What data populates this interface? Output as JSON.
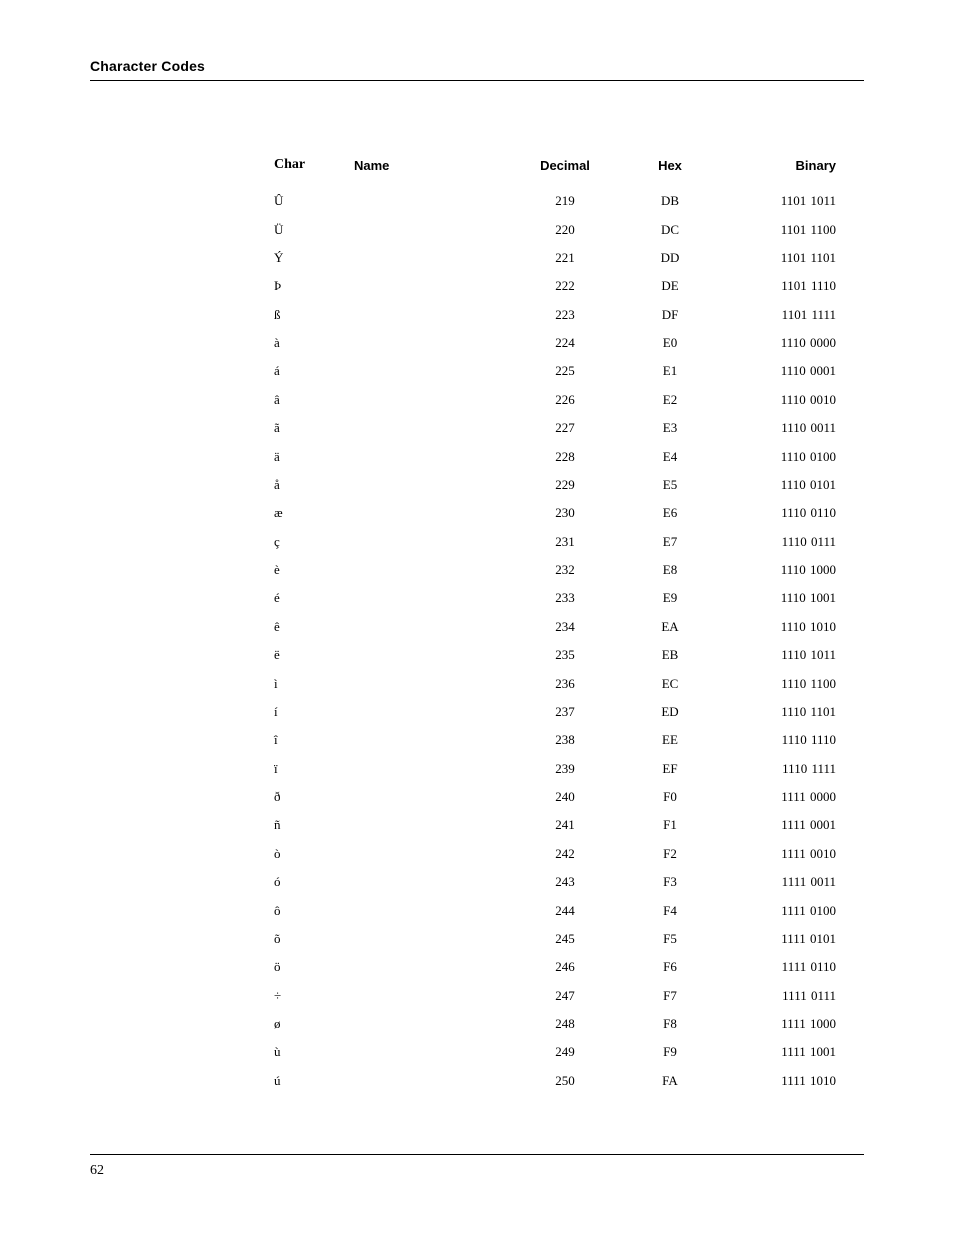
{
  "header": {
    "title": "Character Codes"
  },
  "footer": {
    "page_number": "62"
  },
  "table": {
    "columns": {
      "char": "Char",
      "name": "Name",
      "decimal": "Decimal",
      "hex": "Hex",
      "binary": "Binary"
    },
    "rows": [
      {
        "char": "Û",
        "name": "",
        "decimal": "219",
        "hex": "DB",
        "binary": "1101 1011"
      },
      {
        "char": "Ü",
        "name": "",
        "decimal": "220",
        "hex": "DC",
        "binary": "1101 1100"
      },
      {
        "char": "Ý",
        "name": "",
        "decimal": "221",
        "hex": "DD",
        "binary": "1101 1101"
      },
      {
        "char": "Þ",
        "name": "",
        "decimal": "222",
        "hex": "DE",
        "binary": "1101 1110"
      },
      {
        "char": "ß",
        "name": "",
        "decimal": "223",
        "hex": "DF",
        "binary": "1101 1111"
      },
      {
        "char": "à",
        "name": "",
        "decimal": "224",
        "hex": "E0",
        "binary": "1110 0000"
      },
      {
        "char": "á",
        "name": "",
        "decimal": "225",
        "hex": "E1",
        "binary": "1110 0001"
      },
      {
        "char": "â",
        "name": "",
        "decimal": "226",
        "hex": "E2",
        "binary": "1110 0010"
      },
      {
        "char": "ã",
        "name": "",
        "decimal": "227",
        "hex": "E3",
        "binary": "1110 0011"
      },
      {
        "char": "ä",
        "name": "",
        "decimal": "228",
        "hex": "E4",
        "binary": "1110 0100"
      },
      {
        "char": "å",
        "name": "",
        "decimal": "229",
        "hex": "E5",
        "binary": "1110 0101"
      },
      {
        "char": "æ",
        "name": "",
        "decimal": "230",
        "hex": "E6",
        "binary": "1110 0110"
      },
      {
        "char": "ç",
        "name": "",
        "decimal": "231",
        "hex": "E7",
        "binary": "1110 0111"
      },
      {
        "char": "è",
        "name": "",
        "decimal": "232",
        "hex": "E8",
        "binary": "1110 1000"
      },
      {
        "char": "é",
        "name": "",
        "decimal": "233",
        "hex": "E9",
        "binary": "1110 1001"
      },
      {
        "char": "ê",
        "name": "",
        "decimal": "234",
        "hex": "EA",
        "binary": "1110 1010"
      },
      {
        "char": "ë",
        "name": "",
        "decimal": "235",
        "hex": "EB",
        "binary": "1110 1011"
      },
      {
        "char": "ì",
        "name": "",
        "decimal": "236",
        "hex": "EC",
        "binary": "1110 1100"
      },
      {
        "char": "í",
        "name": "",
        "decimal": "237",
        "hex": "ED",
        "binary": "1110 1101"
      },
      {
        "char": "î",
        "name": "",
        "decimal": "238",
        "hex": "EE",
        "binary": "1110 1110"
      },
      {
        "char": "ï",
        "name": "",
        "decimal": "239",
        "hex": "EF",
        "binary": "1110 1111"
      },
      {
        "char": "ð",
        "name": "",
        "decimal": "240",
        "hex": "F0",
        "binary": "1111 0000"
      },
      {
        "char": "ñ",
        "name": "",
        "decimal": "241",
        "hex": "F1",
        "binary": "1111 0001"
      },
      {
        "char": "ò",
        "name": "",
        "decimal": "242",
        "hex": "F2",
        "binary": "1111 0010"
      },
      {
        "char": "ó",
        "name": "",
        "decimal": "243",
        "hex": "F3",
        "binary": "1111 0011"
      },
      {
        "char": "ô",
        "name": "",
        "decimal": "244",
        "hex": "F4",
        "binary": "1111 0100"
      },
      {
        "char": "õ",
        "name": "",
        "decimal": "245",
        "hex": "F5",
        "binary": "1111 0101"
      },
      {
        "char": "ö",
        "name": "",
        "decimal": "246",
        "hex": "F6",
        "binary": "1111 0110"
      },
      {
        "char": "÷",
        "name": "",
        "decimal": "247",
        "hex": "F7",
        "binary": "1111 0111"
      },
      {
        "char": "ø",
        "name": "",
        "decimal": "248",
        "hex": "F8",
        "binary": "1111 1000"
      },
      {
        "char": "ù",
        "name": "",
        "decimal": "249",
        "hex": "F9",
        "binary": "1111 1001"
      },
      {
        "char": "ú",
        "name": "",
        "decimal": "250",
        "hex": "FA",
        "binary": "1111 1010"
      }
    ]
  }
}
